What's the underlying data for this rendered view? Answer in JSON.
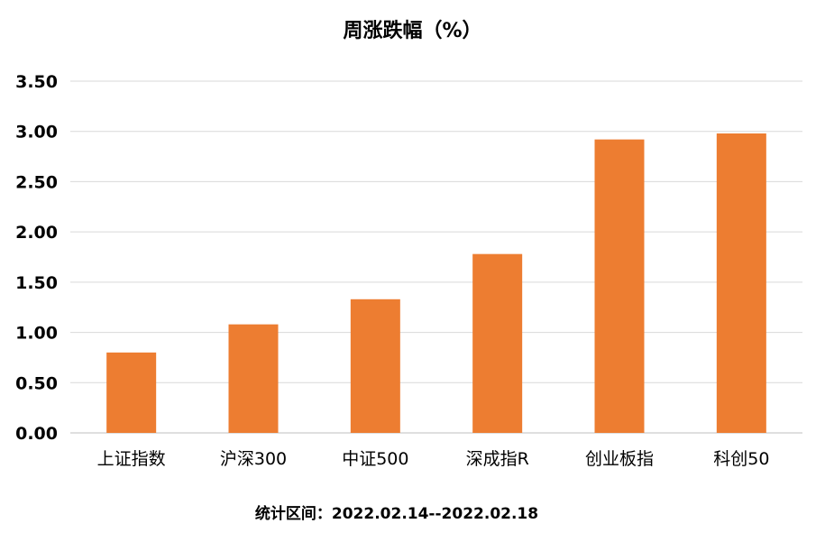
{
  "chart_data": {
    "type": "bar",
    "title": "周涨跌幅（%）",
    "xlabel": "",
    "ylabel": "",
    "categories": [
      "上证指数",
      "沪深300",
      "中证500",
      "深成指R",
      "创业板指",
      "科创50"
    ],
    "values": [
      0.8,
      1.08,
      1.33,
      1.78,
      2.92,
      2.98
    ],
    "ylim": [
      0,
      3.5
    ],
    "yticks": [
      "0.00",
      "0.50",
      "1.00",
      "1.50",
      "2.00",
      "2.50",
      "3.00",
      "3.50"
    ],
    "grid": true,
    "legend": "none",
    "bar_color": "#ED7D31"
  },
  "footnote": "统计区间：2022.02.14--2022.02.18"
}
